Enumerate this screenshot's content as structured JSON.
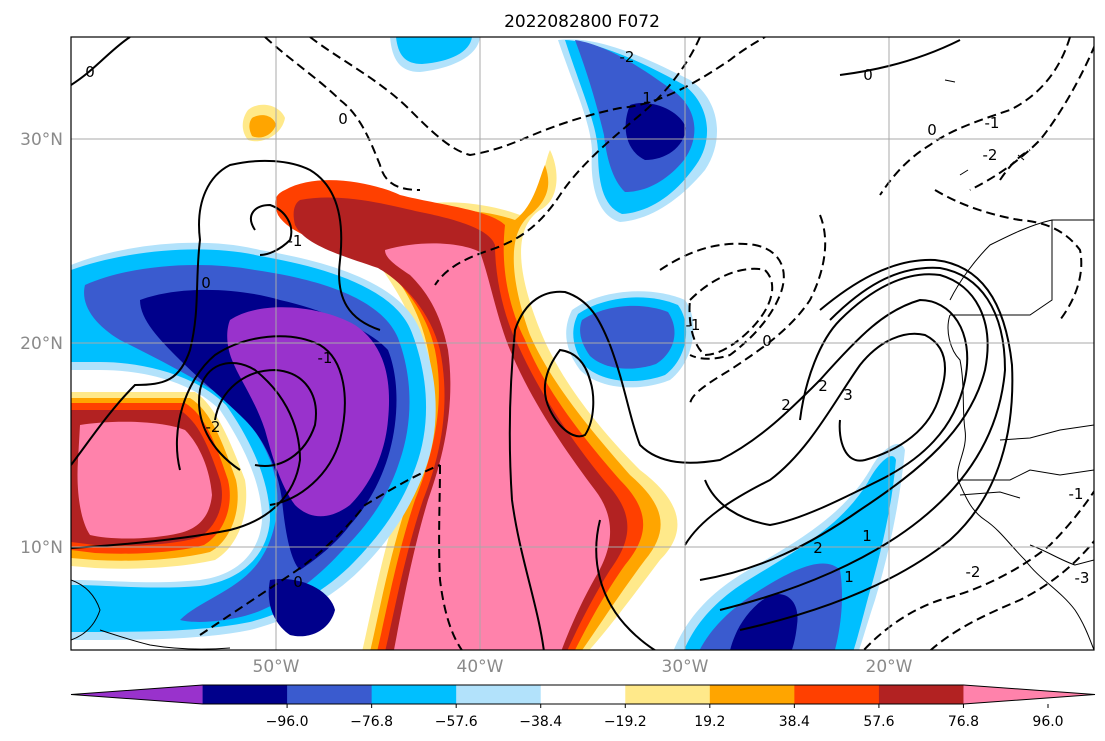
{
  "title": "2022082800 F072",
  "axes": {
    "lat_ticks": [
      "30°N",
      "20°N",
      "10°N"
    ],
    "lon_ticks": [
      "50°W",
      "40°W",
      "30°W",
      "20°W"
    ]
  },
  "colorbar": {
    "colors": [
      "#9932cc",
      "#00008b",
      "#3a5bcf",
      "#00bfff",
      "#b2e2fb",
      "#ffffff",
      "#ffe98a",
      "#ffa500",
      "#ff4000",
      "#b22222",
      "#ff82ab"
    ],
    "tick_labels": [
      "−96.0",
      "−76.8",
      "−57.6",
      "−38.4",
      "−19.2",
      "19.2",
      "38.4",
      "57.6",
      "76.8",
      "96.0"
    ]
  },
  "contour_labels": [
    "0",
    "0",
    "0",
    "0",
    "0",
    "0",
    "0",
    "-1",
    "-1",
    "-1",
    "-1",
    "-1",
    "-2",
    "-2",
    "-2",
    "-2",
    "2",
    "2",
    "2",
    "1",
    "1",
    "1",
    "-3",
    "3"
  ],
  "map": {
    "extent_lon": [
      -60,
      -10
    ],
    "extent_lat": [
      5,
      35
    ],
    "shading_field": "filled contours (diverging)",
    "contour_field": "solid positive, dashed negative"
  }
}
